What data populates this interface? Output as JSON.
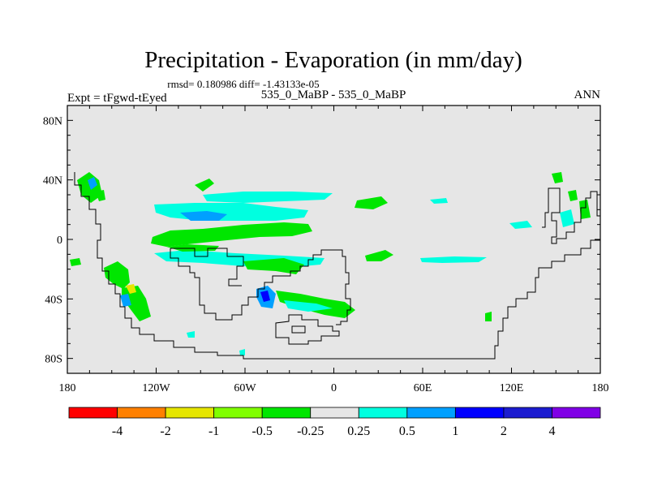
{
  "header": {
    "title": "Precipitation - Evaporation (in mm/day)",
    "stats": "rmsd= 0.180986 diff= -1.43133e-05",
    "expt": "Expt = tFgwd-tEyed",
    "case": "535_0_MaBP - 535_0_MaBP",
    "season": "ANN"
  },
  "axes": {
    "lat_labels": [
      "80N",
      "40N",
      "0",
      "40S",
      "80S"
    ],
    "lat_values": [
      80,
      40,
      0,
      -40,
      -80
    ],
    "lon_labels": [
      "180",
      "120W",
      "60W",
      "0",
      "60E",
      "120E",
      "180"
    ],
    "lon_values": [
      -180,
      -120,
      -60,
      0,
      60,
      120,
      180
    ],
    "lat_range": [
      -90,
      90
    ],
    "lon_range": [
      -180,
      180
    ]
  },
  "colorbar": {
    "colors": [
      "#ff0000",
      "#ff8000",
      "#e6e600",
      "#80ff00",
      "#00e600",
      "#e6e6e6",
      "#00ffe0",
      "#00a0ff",
      "#0000ff",
      "#1c1cd0",
      "#8000e6"
    ],
    "labels": [
      "-4",
      "-2",
      "-1",
      "-0.5",
      "-0.25",
      "0.25",
      "0.5",
      "1",
      "2",
      "4"
    ]
  },
  "colors": {
    "background": "#e6e6e6",
    "coast": "#000000"
  }
}
